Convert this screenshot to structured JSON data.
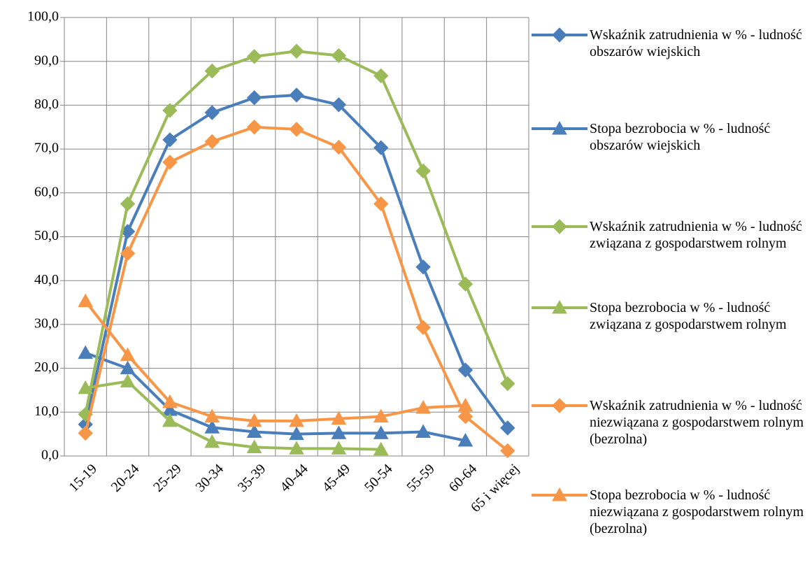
{
  "chart_data": {
    "type": "line",
    "categories": [
      "15-19",
      "20-24",
      "25-29",
      "30-34",
      "35-39",
      "40-44",
      "45-49",
      "50-54",
      "55-59",
      "60-64",
      "65 i więcej"
    ],
    "series": [
      {
        "name": "Wskaźnik zatrudnienia w % - ludność obszarów wiejskich",
        "color": "#4a7ebb",
        "marker": "diamond",
        "values": [
          7.2,
          51.2,
          72.1,
          78.3,
          81.7,
          82.3,
          80.1,
          70.3,
          43.1,
          19.6,
          6.4
        ]
      },
      {
        "name": "Stopa bezrobocia w % - ludność obszarów wiejskich",
        "color": "#4a7ebb",
        "marker": "triangle",
        "values": [
          23.5,
          20.0,
          10.5,
          6.5,
          5.5,
          5.0,
          5.2,
          5.2,
          5.5,
          3.5,
          null
        ]
      },
      {
        "name": "Wskaźnik zatrudnienia w % - ludność związana z gospodarstwem rolnym",
        "color": "#9bbb59",
        "marker": "diamond",
        "values": [
          9.5,
          57.5,
          78.8,
          87.8,
          91.1,
          92.3,
          91.3,
          86.7,
          65.0,
          39.2,
          16.5
        ]
      },
      {
        "name": "Stopa bezrobocia w % - ludność związana z gospodarstwem rolnym",
        "color": "#9bbb59",
        "marker": "triangle",
        "values": [
          15.5,
          17.0,
          8.0,
          3.2,
          2.0,
          1.7,
          1.7,
          1.5,
          null,
          null,
          null
        ]
      },
      {
        "name": "Wskaźnik zatrudnienia w % - ludność niezwiązana z gospodarstwem rolnym (bezrolna)",
        "color": "#f79646",
        "marker": "diamond",
        "values": [
          5.2,
          46.2,
          67.0,
          71.7,
          75.0,
          74.5,
          70.4,
          57.5,
          29.3,
          9.0,
          1.2
        ]
      },
      {
        "name": "Stopa bezrobocia w % - ludność niezwiązana z gospodarstwem rolnym (bezrolna)",
        "color": "#f79646",
        "marker": "triangle",
        "values": [
          35.3,
          23.0,
          12.3,
          9.0,
          8.0,
          8.0,
          8.5,
          9.0,
          11.0,
          11.5,
          null
        ]
      }
    ],
    "ylim": [
      0,
      100
    ],
    "yticks": [
      {
        "value": 0,
        "label": "0,0"
      },
      {
        "value": 10,
        "label": "10,0"
      },
      {
        "value": 20,
        "label": "20,0"
      },
      {
        "value": 30,
        "label": "30,0"
      },
      {
        "value": 40,
        "label": "40,0"
      },
      {
        "value": 50,
        "label": "50,0"
      },
      {
        "value": 60,
        "label": "60,0"
      },
      {
        "value": 70,
        "label": "70,0"
      },
      {
        "value": 80,
        "label": "80,0"
      },
      {
        "value": 90,
        "label": "90,0"
      },
      {
        "value": 100,
        "label": "100,0"
      }
    ],
    "grid": true,
    "legend": "right"
  }
}
